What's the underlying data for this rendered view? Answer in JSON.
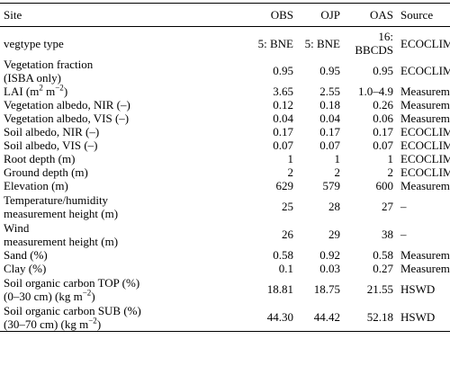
{
  "header": {
    "site": "Site",
    "obs": "OBS",
    "ojp": "OJP",
    "oas": "OAS",
    "source": "Source"
  },
  "rows": [
    {
      "label_lines": [
        "vegtype type"
      ],
      "obs": "5: BNE",
      "ojp": "5: BNE",
      "oas": "16: BBCDS",
      "source": "ECOCLIMAP"
    },
    {
      "label_lines": [
        "Vegetation fraction",
        "(ISBA only)"
      ],
      "obs": "0.95",
      "ojp": "0.95",
      "oas": "0.95",
      "source": "ECOCLIMAP"
    },
    {
      "label_lines": [
        "LAI (m2 m−2)"
      ],
      "obs": "3.65",
      "ojp": "2.55",
      "oas": "1.0–4.9",
      "source": "Measurements"
    },
    {
      "label_lines": [
        "Vegetation albedo, NIR (–)"
      ],
      "obs": "0.12",
      "ojp": "0.18",
      "oas": "0.26",
      "source": "Measurements"
    },
    {
      "label_lines": [
        "Vegetation albedo, VIS (–)"
      ],
      "obs": "0.04",
      "ojp": "0.04",
      "oas": "0.06",
      "source": "Measurements"
    },
    {
      "label_lines": [
        "Soil albedo, NIR (–)"
      ],
      "obs": "0.17",
      "ojp": "0.17",
      "oas": "0.17",
      "source": "ECOCLIMAP"
    },
    {
      "label_lines": [
        "Soil albedo, VIS (–)"
      ],
      "obs": "0.07",
      "ojp": "0.07",
      "oas": "0.07",
      "source": "ECOCLIMAP"
    },
    {
      "label_lines": [
        "Root depth (m)"
      ],
      "obs": "1",
      "ojp": "1",
      "oas": "1",
      "source": "ECOCLIMAP"
    },
    {
      "label_lines": [
        "Ground depth (m)"
      ],
      "obs": "2",
      "ojp": "2",
      "oas": "2",
      "source": "ECOCLIMAP"
    },
    {
      "label_lines": [
        "Elevation (m)"
      ],
      "obs": "629",
      "ojp": "579",
      "oas": "600",
      "source": "Measurements"
    },
    {
      "label_lines": [
        "Temperature/humidity",
        "measurement height (m)"
      ],
      "obs": "25",
      "ojp": "28",
      "oas": "27",
      "source": "–"
    },
    {
      "label_lines": [
        "Wind",
        "measurement height (m)"
      ],
      "obs": "26",
      "ojp": "29",
      "oas": "38",
      "source": "–"
    },
    {
      "label_lines": [
        "Sand (%)"
      ],
      "obs": "0.58",
      "ojp": "0.92",
      "oas": "0.58",
      "source": "Measurements"
    },
    {
      "label_lines": [
        "Clay (%)"
      ],
      "obs": "0.1",
      "ojp": "0.03",
      "oas": "0.27",
      "source": "Measurements"
    },
    {
      "label_lines": [
        "Soil organic carbon TOP (%)",
        "(0–30 cm) (kg m−2)"
      ],
      "obs": "18.81",
      "ojp": "18.75",
      "oas": "21.55",
      "source": "HSWD"
    },
    {
      "label_lines": [
        "Soil organic carbon SUB (%)",
        "(30–70 cm) (kg m−2)"
      ],
      "obs": "44.30",
      "ojp": "44.42",
      "oas": "52.18",
      "source": "HSWD"
    }
  ]
}
